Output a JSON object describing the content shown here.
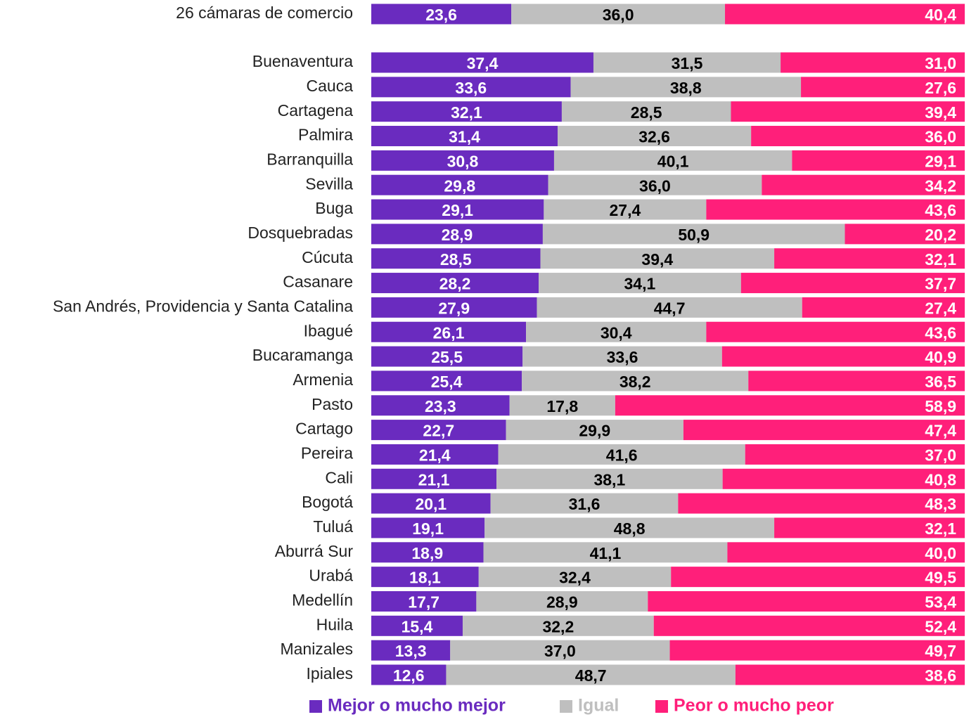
{
  "chart_data": {
    "type": "stacked_bar_100",
    "categories": [
      "26 cámaras de comercio",
      "Buenaventura",
      "Cauca",
      "Cartagena",
      "Palmira",
      "Barranquilla",
      "Sevilla",
      "Buga",
      "Dosquebradas",
      "Cúcuta",
      "Casanare",
      "San Andrés, Providencia y Santa Catalina",
      "Ibagué",
      "Bucaramanga",
      "Armenia",
      "Pasto",
      "Cartago",
      "Pereira",
      "Cali",
      "Bogotá",
      "Tuluá",
      "Aburrá Sur",
      "Urabá",
      "Medellín",
      "Huila",
      "Manizales",
      "Ipiales"
    ],
    "series": [
      {
        "name": "Mejor o mucho mejor",
        "color": "#6a2bbf",
        "values": [
          23.6,
          37.4,
          33.6,
          32.1,
          31.4,
          30.8,
          29.8,
          29.1,
          28.9,
          28.5,
          28.2,
          27.9,
          26.1,
          25.5,
          25.4,
          23.3,
          22.7,
          21.4,
          21.1,
          20.1,
          19.1,
          18.9,
          18.1,
          17.7,
          15.4,
          13.3,
          12.6
        ],
        "value_labels": [
          "23,6",
          "37,4",
          "33,6",
          "32,1",
          "31,4",
          "30,8",
          "29,8",
          "29,1",
          "28,9",
          "28,5",
          "28,2",
          "27,9",
          "26,1",
          "25,5",
          "25,4",
          "23,3",
          "22,7",
          "21,4",
          "21,1",
          "20,1",
          "19,1",
          "18,9",
          "18,1",
          "17,7",
          "15,4",
          "13,3",
          "12,6"
        ]
      },
      {
        "name": "Igual",
        "color": "#bfbfbf",
        "values": [
          36.0,
          31.5,
          38.8,
          28.5,
          32.6,
          40.1,
          36.0,
          27.4,
          50.9,
          39.4,
          34.1,
          44.7,
          30.4,
          33.6,
          38.2,
          17.8,
          29.9,
          41.6,
          38.1,
          31.6,
          48.8,
          41.1,
          32.4,
          28.9,
          32.2,
          37.0,
          48.7
        ],
        "value_labels": [
          "36,0",
          "31,5",
          "38,8",
          "28,5",
          "32,6",
          "40,1",
          "36,0",
          "27,4",
          "50,9",
          "39,4",
          "34,1",
          "44,7",
          "30,4",
          "33,6",
          "38,2",
          "17,8",
          "29,9",
          "41,6",
          "38,1",
          "31,6",
          "48,8",
          "41,1",
          "32,4",
          "28,9",
          "32,2",
          "37,0",
          "48,7"
        ]
      },
      {
        "name": "Peor o mucho peor",
        "color": "#ff1f7a",
        "values": [
          40.4,
          31.0,
          27.6,
          39.4,
          36.0,
          29.1,
          34.2,
          43.6,
          20.2,
          32.1,
          37.7,
          27.4,
          43.6,
          40.9,
          36.5,
          58.9,
          47.4,
          37.0,
          40.8,
          48.3,
          32.1,
          40.0,
          49.5,
          53.4,
          52.4,
          49.7,
          38.6
        ],
        "value_labels": [
          "40,4",
          "31,0",
          "27,6",
          "39,4",
          "36,0",
          "29,1",
          "34,2",
          "43,6",
          "20,2",
          "32,1",
          "37,7",
          "27,4",
          "43,6",
          "40,9",
          "36,5",
          "58,9",
          "47,4",
          "37,0",
          "40,8",
          "48,3",
          "32,1",
          "40,0",
          "49,5",
          "53,4",
          "52,4",
          "49,7",
          "38,6"
        ]
      }
    ]
  }
}
